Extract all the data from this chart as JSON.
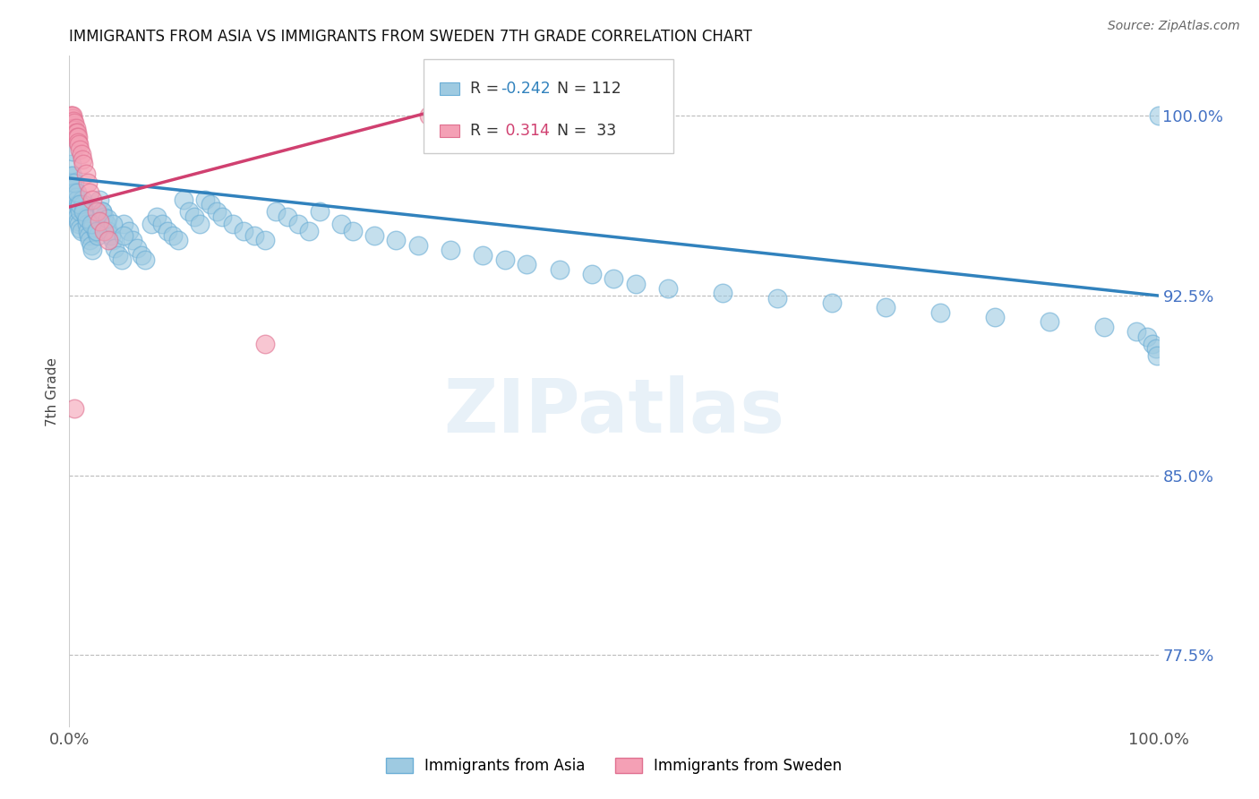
{
  "title": "IMMIGRANTS FROM ASIA VS IMMIGRANTS FROM SWEDEN 7TH GRADE CORRELATION CHART",
  "source": "Source: ZipAtlas.com",
  "ylabel": "7th Grade",
  "xlim": [
    0.0,
    1.0
  ],
  "ylim": [
    0.745,
    1.025
  ],
  "ytick_positions": [
    0.775,
    0.85,
    0.925,
    1.0
  ],
  "ytick_labels": [
    "77.5%",
    "85.0%",
    "92.5%",
    "100.0%"
  ],
  "legend_r_asia": "-0.242",
  "legend_n_asia": "112",
  "legend_r_sweden": "0.314",
  "legend_n_sweden": "33",
  "blue_color": "#9ecae1",
  "pink_color": "#f4a0b5",
  "blue_edge_color": "#6baed6",
  "pink_edge_color": "#e07090",
  "blue_line_color": "#3182bd",
  "pink_line_color": "#d04070",
  "blue_trend_x": [
    0.0,
    1.0
  ],
  "blue_trend_y": [
    0.974,
    0.925
  ],
  "pink_trend_x": [
    0.0,
    0.36
  ],
  "pink_trend_y": [
    0.962,
    1.005
  ],
  "blue_scatter_x": [
    0.001,
    0.002,
    0.002,
    0.003,
    0.003,
    0.004,
    0.004,
    0.005,
    0.005,
    0.006,
    0.006,
    0.007,
    0.007,
    0.008,
    0.008,
    0.009,
    0.009,
    0.01,
    0.01,
    0.011,
    0.012,
    0.013,
    0.014,
    0.015,
    0.016,
    0.017,
    0.018,
    0.019,
    0.02,
    0.021,
    0.022,
    0.024,
    0.026,
    0.028,
    0.03,
    0.032,
    0.034,
    0.036,
    0.038,
    0.04,
    0.042,
    0.045,
    0.048,
    0.05,
    0.055,
    0.058,
    0.062,
    0.066,
    0.07,
    0.075,
    0.08,
    0.085,
    0.09,
    0.095,
    0.1,
    0.105,
    0.11,
    0.115,
    0.12,
    0.125,
    0.13,
    0.135,
    0.14,
    0.15,
    0.16,
    0.17,
    0.18,
    0.19,
    0.2,
    0.21,
    0.22,
    0.23,
    0.25,
    0.26,
    0.28,
    0.3,
    0.32,
    0.35,
    0.38,
    0.4,
    0.42,
    0.45,
    0.48,
    0.5,
    0.52,
    0.55,
    0.6,
    0.65,
    0.7,
    0.75,
    0.8,
    0.85,
    0.9,
    0.95,
    0.98,
    0.99,
    0.995,
    0.998,
    0.999,
    1.0,
    0.003,
    0.005,
    0.007,
    0.01,
    0.013,
    0.016,
    0.02,
    0.025,
    0.03,
    0.035,
    0.04,
    0.05
  ],
  "blue_scatter_y": [
    0.975,
    0.972,
    0.98,
    0.968,
    0.975,
    0.965,
    0.97,
    0.962,
    0.968,
    0.96,
    0.966,
    0.958,
    0.965,
    0.956,
    0.963,
    0.955,
    0.962,
    0.953,
    0.96,
    0.952,
    0.965,
    0.963,
    0.96,
    0.958,
    0.955,
    0.952,
    0.95,
    0.948,
    0.946,
    0.944,
    0.955,
    0.952,
    0.95,
    0.965,
    0.96,
    0.958,
    0.955,
    0.952,
    0.95,
    0.948,
    0.945,
    0.942,
    0.94,
    0.955,
    0.952,
    0.948,
    0.945,
    0.942,
    0.94,
    0.955,
    0.958,
    0.955,
    0.952,
    0.95,
    0.948,
    0.965,
    0.96,
    0.958,
    0.955,
    0.965,
    0.963,
    0.96,
    0.958,
    0.955,
    0.952,
    0.95,
    0.948,
    0.96,
    0.958,
    0.955,
    0.952,
    0.96,
    0.955,
    0.952,
    0.95,
    0.948,
    0.946,
    0.944,
    0.942,
    0.94,
    0.938,
    0.936,
    0.934,
    0.932,
    0.93,
    0.928,
    0.926,
    0.924,
    0.922,
    0.92,
    0.918,
    0.916,
    0.914,
    0.912,
    0.91,
    0.908,
    0.905,
    0.903,
    0.9,
    1.0,
    0.985,
    0.972,
    0.968,
    0.963,
    0.96,
    0.957,
    0.955,
    0.952,
    0.96,
    0.957,
    0.955,
    0.95
  ],
  "pink_scatter_x": [
    0.001,
    0.001,
    0.002,
    0.002,
    0.003,
    0.003,
    0.003,
    0.004,
    0.004,
    0.005,
    0.005,
    0.006,
    0.006,
    0.007,
    0.007,
    0.008,
    0.008,
    0.009,
    0.01,
    0.011,
    0.012,
    0.013,
    0.015,
    0.017,
    0.019,
    0.021,
    0.025,
    0.028,
    0.032,
    0.036,
    0.18,
    0.33,
    0.005
  ],
  "pink_scatter_y": [
    1.0,
    0.998,
    1.0,
    0.997,
    0.999,
    0.996,
    1.0,
    0.998,
    0.995,
    0.997,
    0.994,
    0.995,
    0.993,
    0.993,
    0.991,
    0.991,
    0.989,
    0.988,
    0.986,
    0.984,
    0.982,
    0.98,
    0.976,
    0.972,
    0.968,
    0.965,
    0.96,
    0.956,
    0.952,
    0.948,
    0.905,
    1.0,
    0.878
  ]
}
